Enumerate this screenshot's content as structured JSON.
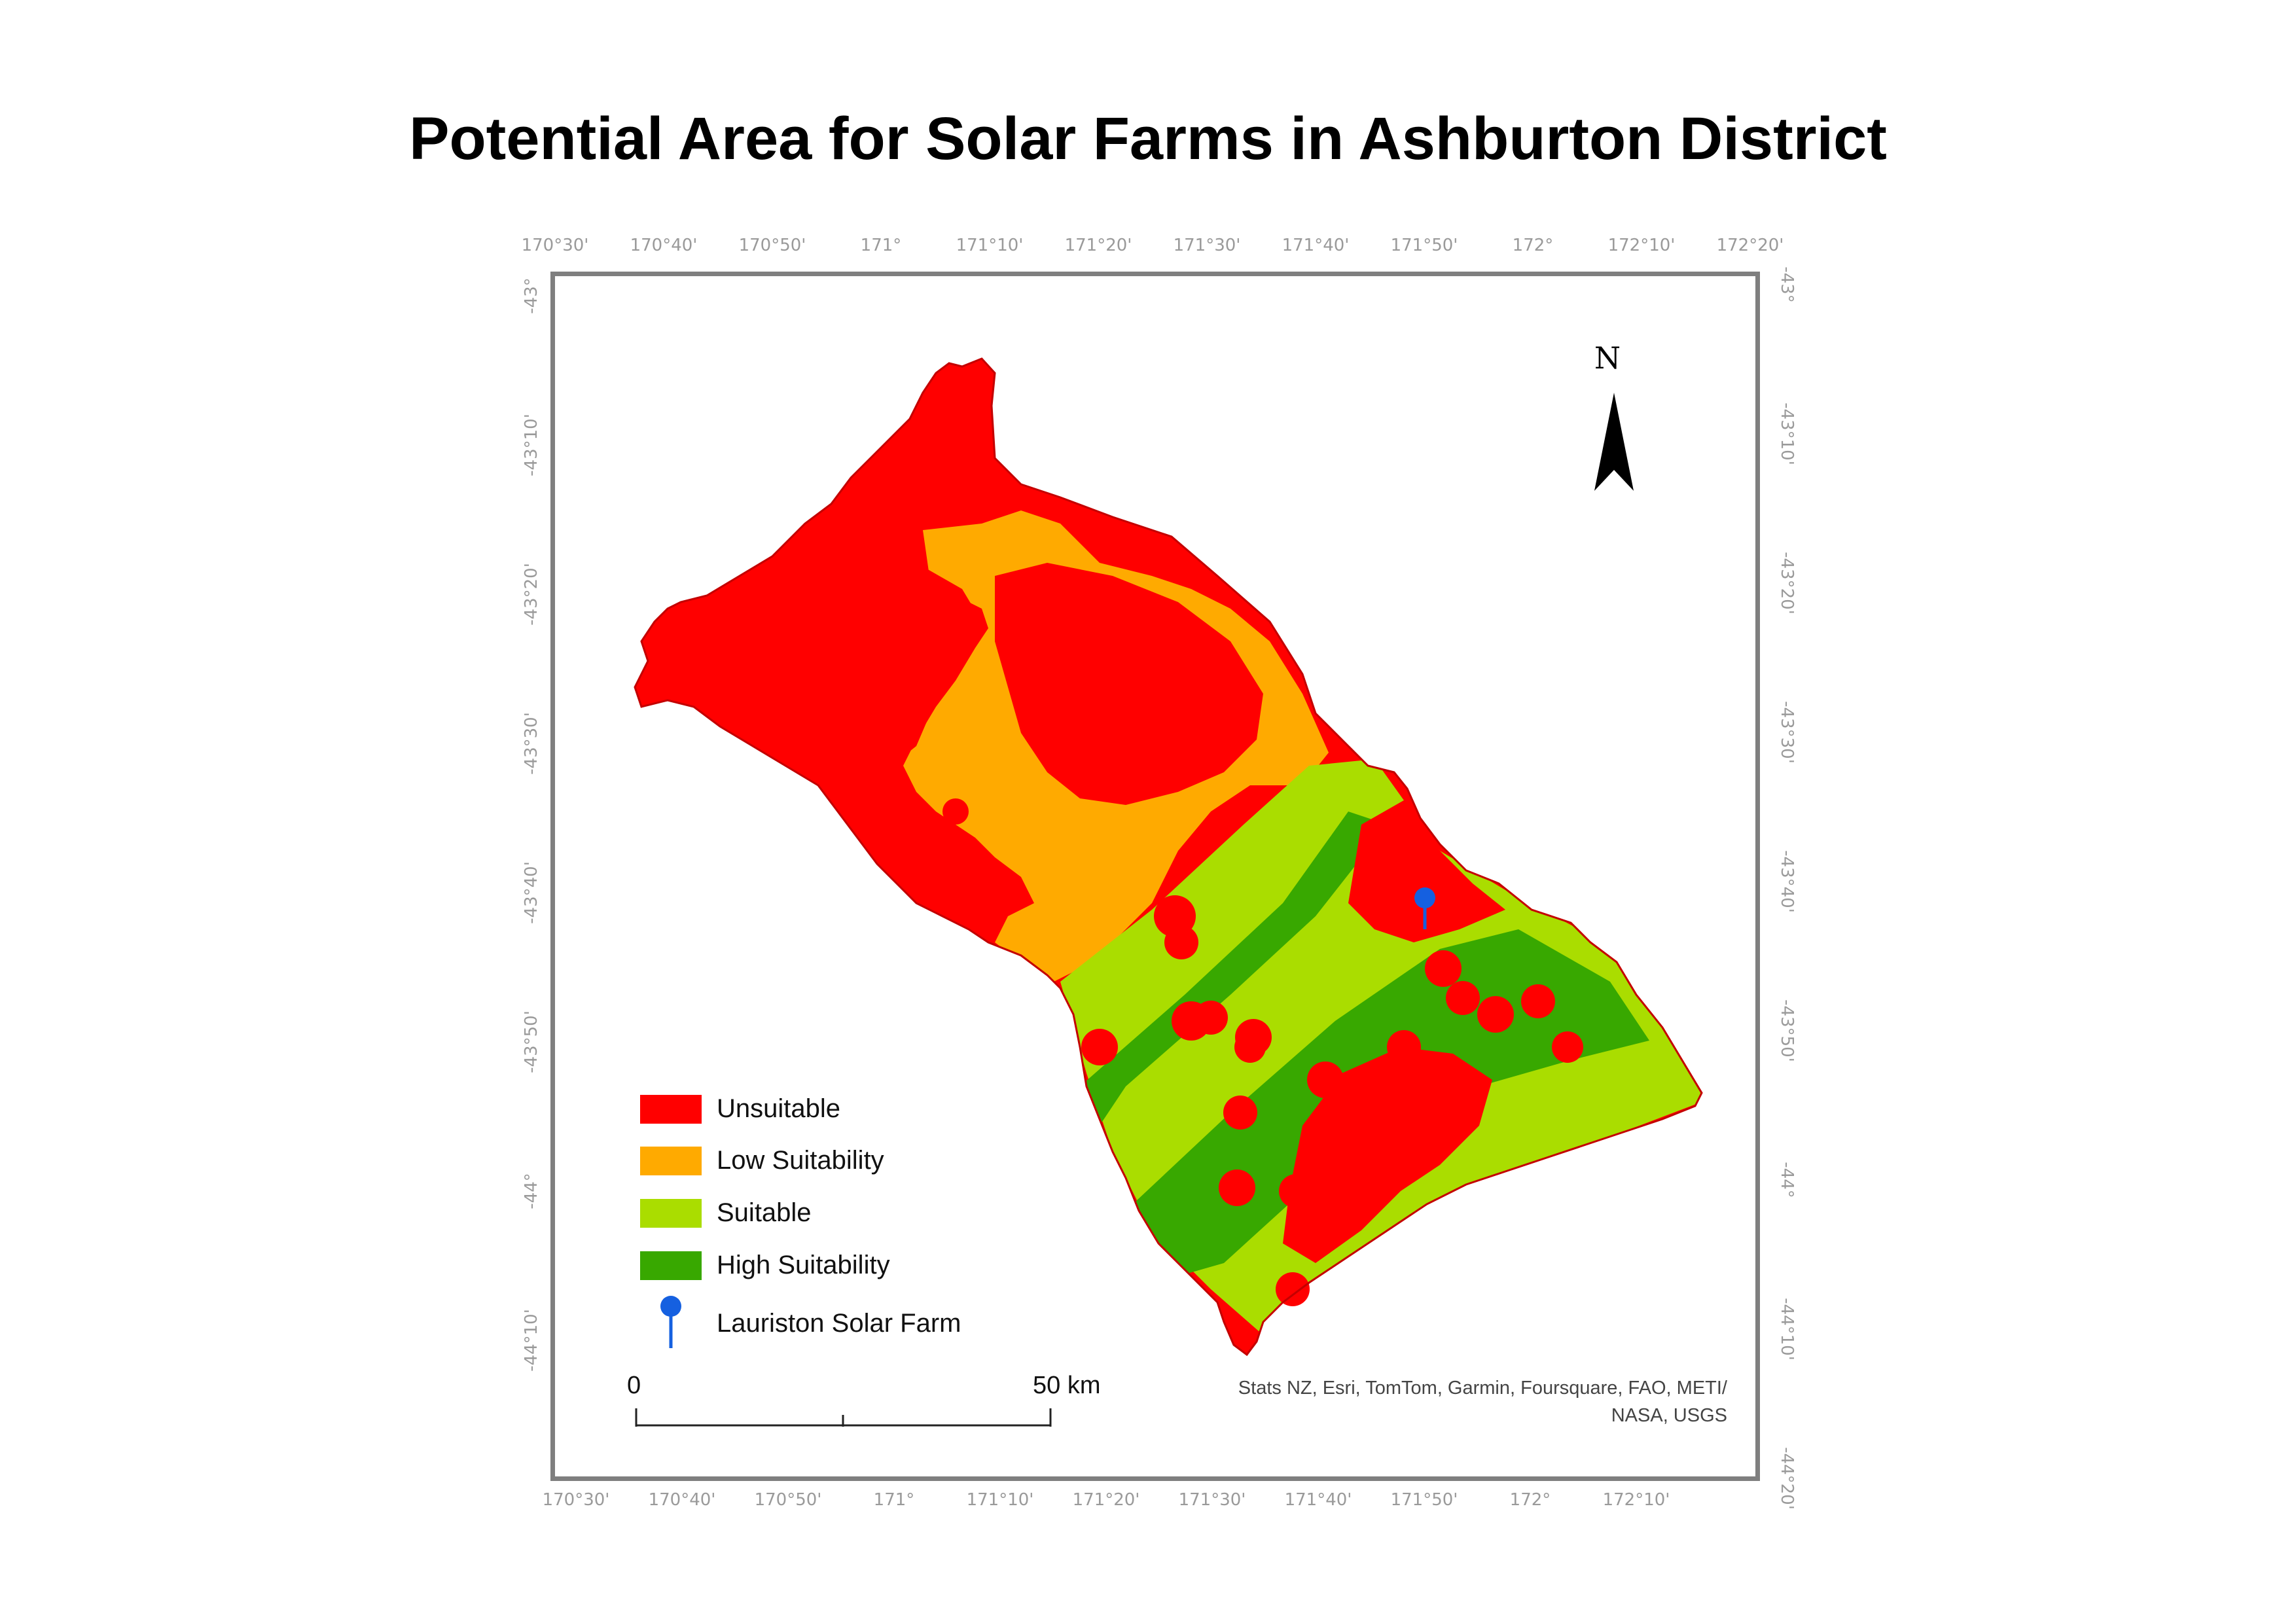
{
  "title": "Potential Area for Solar Farms in Ashburton District",
  "longitude_ticks_top": [
    "170°30'",
    "170°40'",
    "170°50'",
    "171°",
    "171°10'",
    "171°20'",
    "171°30'",
    "171°40'",
    "171°50'",
    "172°",
    "172°10'",
    "172°20'"
  ],
  "longitude_ticks_bottom": [
    "170°30'",
    "170°40'",
    "170°50'",
    "171°",
    "171°10'",
    "171°20'",
    "171°30'",
    "171°40'",
    "171°50'",
    "172°",
    "172°10'"
  ],
  "latitude_ticks_left": [
    "-43°",
    "-43°10'",
    "-43°20'",
    "-43°30'",
    "-43°40'",
    "-43°50'",
    "-44°",
    "-44°10'"
  ],
  "latitude_ticks_right": [
    "-43°",
    "-43°10'",
    "-43°20'",
    "-43°30'",
    "-43°40'",
    "-43°50'",
    "-44°",
    "-44°10'",
    "-44°20'"
  ],
  "legend": {
    "items": [
      {
        "label": "Unsuitable",
        "color": "#ff0000"
      },
      {
        "label": "Low Suitability",
        "color": "#ffaa00"
      },
      {
        "label": "Suitable",
        "color": "#aadd00"
      },
      {
        "label": "High Suitability",
        "color": "#38a800"
      }
    ],
    "point": {
      "label": "Lauriston Solar Farm",
      "color": "#1560e0",
      "icon": "map-pin-icon"
    }
  },
  "north_arrow": {
    "label": "N"
  },
  "scale_bar": {
    "start_label": "0",
    "end_label": "50 km"
  },
  "attribution": {
    "line1": "Stats NZ, Esri, TomTom, Garmin, Foursquare, FAO, METI/",
    "line2": "NASA, USGS"
  }
}
